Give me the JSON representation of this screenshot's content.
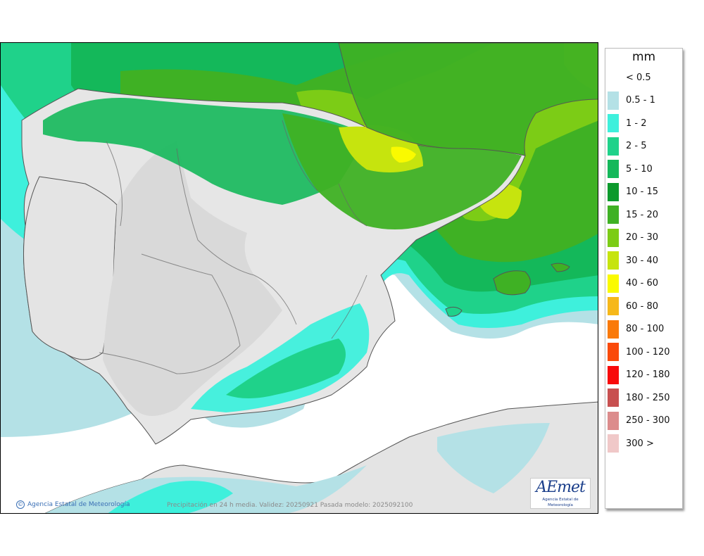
{
  "legend": {
    "unit": "mm",
    "items": [
      {
        "label": "< 0.5",
        "color": "#ffffff"
      },
      {
        "label": "0.5 - 1",
        "color": "#b4e1e6"
      },
      {
        "label": "1 - 2",
        "color": "#3ef0dc"
      },
      {
        "label": "2 - 5",
        "color": "#1fd28a"
      },
      {
        "label": "5 - 10",
        "color": "#14b85a"
      },
      {
        "label": "10 - 15",
        "color": "#0c9a2c"
      },
      {
        "label": "15 - 20",
        "color": "#3fb124"
      },
      {
        "label": "20 - 30",
        "color": "#7ccc16"
      },
      {
        "label": "30 - 40",
        "color": "#c6e40e"
      },
      {
        "label": "40 - 60",
        "color": "#fafa00"
      },
      {
        "label": "60 - 80",
        "color": "#f6b81a"
      },
      {
        "label": "80 - 100",
        "color": "#fa7a0a"
      },
      {
        "label": "100 - 120",
        "color": "#fa4a0a"
      },
      {
        "label": "120 - 180",
        "color": "#f80a0a"
      },
      {
        "label": "180 - 250",
        "color": "#c85050"
      },
      {
        "label": "250 - 300",
        "color": "#dc8c8c"
      },
      {
        "label": "300 >",
        "color": "#f0c8c8"
      }
    ]
  },
  "map": {
    "credit": "Agencia Estatal de Meteorología",
    "caption": "Precipitación en 24 h media. Validez: 20250921 Pasada modelo: 2025092100",
    "logo_text": "AEmet",
    "logo_subtitle": "Agencia Estatal de Meteorología"
  }
}
